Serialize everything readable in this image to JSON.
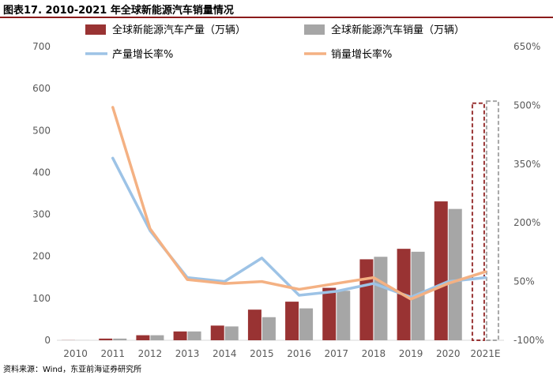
{
  "figure": {
    "title": "图表17. 2010-2021 年全球新能源汽车销量情况",
    "source": "资料来源：Wind，东亚前海证券研究所"
  },
  "chart_data": {
    "type": "bar+line",
    "categories": [
      "2010",
      "2011",
      "2012",
      "2013",
      "2014",
      "2015",
      "2016",
      "2017",
      "2018",
      "2019",
      "2020",
      "2021E"
    ],
    "bars": [
      {
        "name": "全球新能源汽车产量（万辆）",
        "color": "#993333",
        "values": [
          0.3,
          4,
          12,
          21,
          35,
          73,
          92,
          125,
          193,
          218,
          331,
          565
        ],
        "estimated_last": true
      },
      {
        "name": "全球新能源汽车销量（万辆）",
        "color": "#a6a6a6",
        "values": [
          0.2,
          4,
          12,
          21,
          33,
          55,
          76,
          118,
          199,
          211,
          313,
          570
        ],
        "estimated_last": true
      }
    ],
    "lines": [
      {
        "name": "产量增长率%",
        "color": "#9dc3e6",
        "axis": "right",
        "values": [
          null,
          365,
          180,
          60,
          50,
          110,
          15,
          25,
          45,
          10,
          50,
          60
        ]
      },
      {
        "name": "销量增长率%",
        "color": "#f4b183",
        "axis": "right",
        "values": [
          null,
          495,
          185,
          55,
          45,
          50,
          30,
          45,
          60,
          5,
          45,
          75
        ]
      }
    ],
    "left_axis": {
      "min": 0,
      "max": 700,
      "ticks": [
        "0",
        "100",
        "200",
        "300",
        "400",
        "500",
        "600",
        "700"
      ]
    },
    "right_axis": {
      "min": -100,
      "max": 650,
      "ticks": [
        "-100%",
        "50%",
        "200%",
        "350%",
        "500%",
        "650%"
      ]
    },
    "legend_position": "top"
  }
}
